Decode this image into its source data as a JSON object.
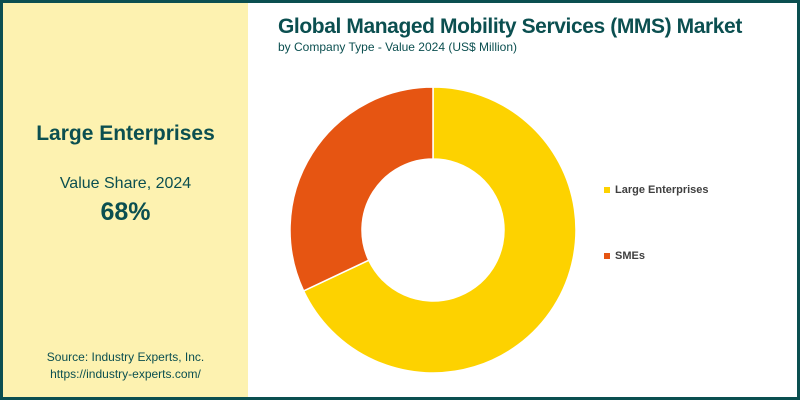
{
  "sidebar": {
    "headline": "Large Enterprises",
    "subtitle": "Value Share, 2024",
    "value": "68%",
    "source": "Source: Industry Experts, Inc.",
    "url": "https://industry-experts.com/"
  },
  "chart_data": {
    "type": "pie",
    "title": "Global Managed Mobility Services (MMS) Market",
    "subtitle": "by Company Type - Value 2024 (US$ Million)",
    "categories": [
      "Large Enterprises",
      "SMEs"
    ],
    "values": [
      68,
      32
    ],
    "colors": [
      "#fdd200",
      "#e65512"
    ],
    "legend": "right",
    "donut": true
  }
}
